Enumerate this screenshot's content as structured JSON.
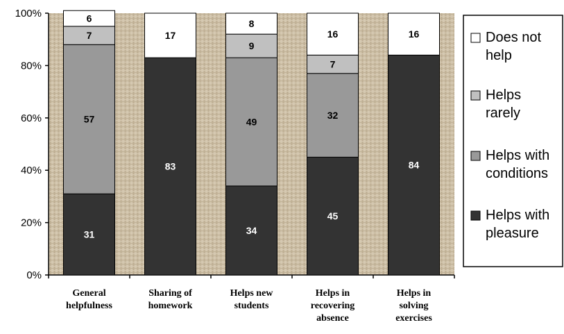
{
  "chart_data": {
    "type": "bar",
    "stacked": true,
    "categories": [
      [
        "General",
        "helpfulness"
      ],
      [
        "Sharing of",
        "homework"
      ],
      [
        "Helps new",
        "students"
      ],
      [
        "Helps in",
        "recovering",
        "absence"
      ],
      [
        "Helps in",
        "solving",
        "exercises"
      ]
    ],
    "series": [
      {
        "name": [
          "Helps with",
          "pleasure"
        ],
        "values": [
          31,
          83,
          34,
          45,
          84
        ],
        "color": "#333333",
        "label_color": "#ffffff"
      },
      {
        "name": [
          "Helps with",
          "conditions"
        ],
        "values": [
          57,
          null,
          49,
          32,
          null
        ],
        "color": "#999999",
        "label_color": "#000000"
      },
      {
        "name": [
          "Helps",
          "rarely"
        ],
        "values": [
          7,
          null,
          9,
          7,
          null
        ],
        "color": "#c0c0c0",
        "label_color": "#000000"
      },
      {
        "name": [
          "Does not",
          "help"
        ],
        "values": [
          6,
          17,
          8,
          16,
          16
        ],
        "color": "#ffffff",
        "label_color": "#000000"
      }
    ],
    "yticks": [
      "0%",
      "20%",
      "40%",
      "60%",
      "80%",
      "100%"
    ],
    "ylim": [
      0,
      100
    ],
    "legend_position": "right",
    "plot_background": "textured beige",
    "colors": {
      "plot_bg": "#c9bca4",
      "axis": "#000000"
    }
  }
}
